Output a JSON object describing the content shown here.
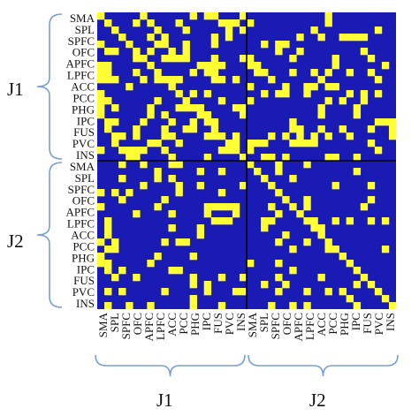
{
  "colors": {
    "off": "#1a1ab4",
    "on": "#ffff33",
    "brace": "#7a9fd6",
    "divider": "#000000",
    "text": "#111111"
  },
  "chart_data": {
    "type": "heatmap",
    "group_labels": [
      "J1",
      "J2"
    ],
    "region_labels": [
      "SMA",
      "SPL",
      "SPFC",
      "OFC",
      "APFC",
      "LPFC",
      "ACC",
      "PCC",
      "PHG",
      "IPC",
      "FUS",
      "PVC",
      "INS"
    ],
    "grid_size": 42,
    "blocks": [
      {
        "rows": "J1",
        "cols": "J1",
        "density": 0.3,
        "diagonal": true
      },
      {
        "rows": "J1",
        "cols": "J2",
        "density": 0.17,
        "diagonal": false
      },
      {
        "rows": "J2",
        "cols": "J1",
        "density": 0.14,
        "diagonal": false
      },
      {
        "rows": "J2",
        "cols": "J2",
        "density": 0.1,
        "diagonal": true
      }
    ],
    "note_values": "binary connectivity matrix: 1 = yellow (connection), 0 = blue"
  }
}
